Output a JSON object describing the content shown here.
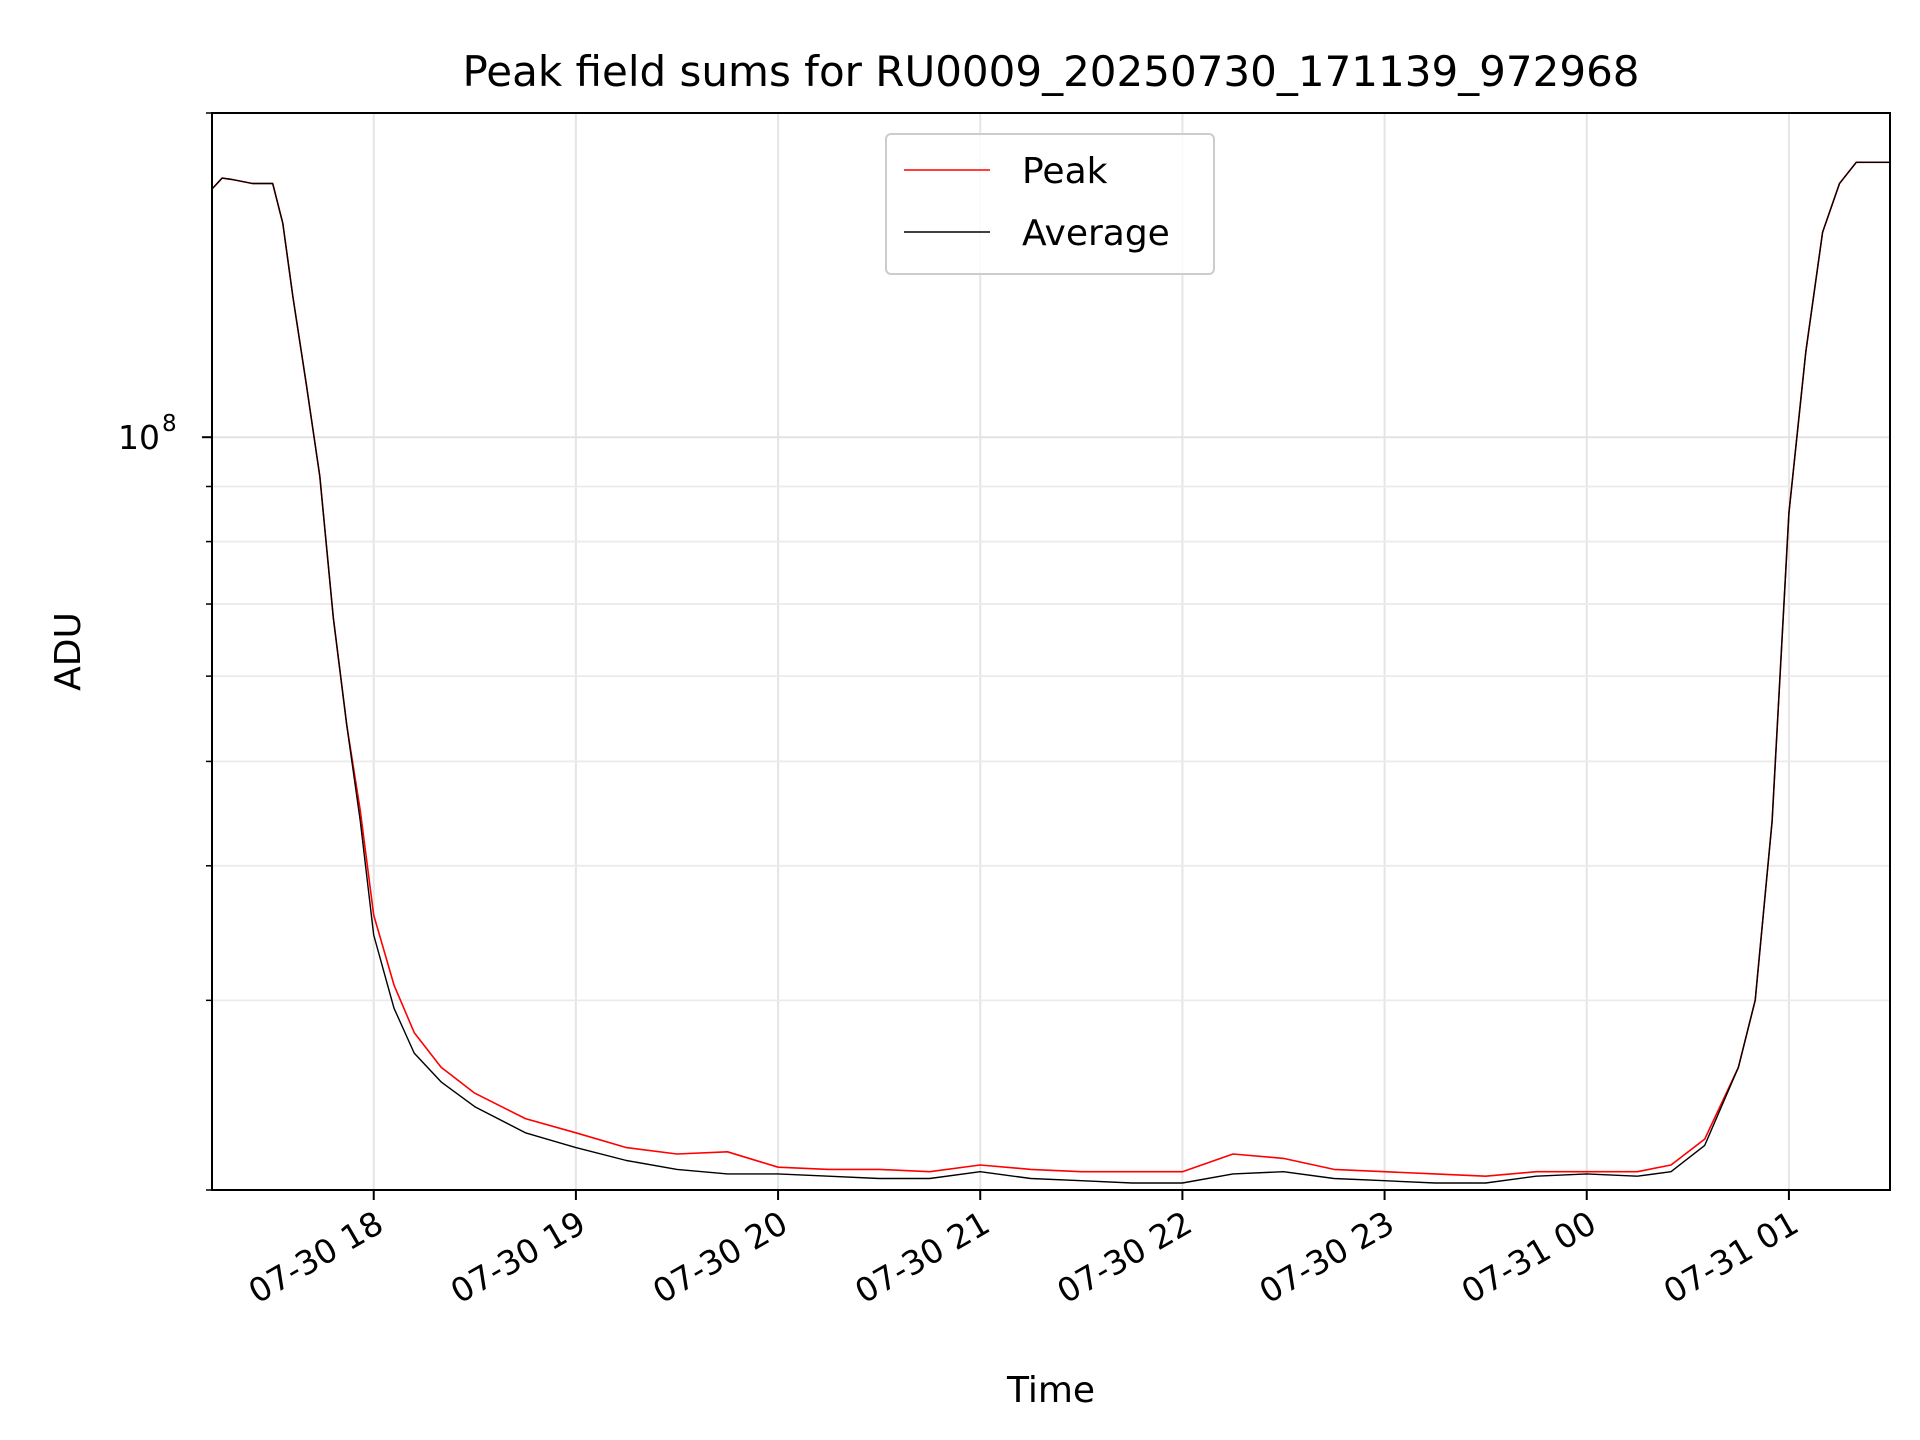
{
  "chart_data": {
    "type": "line",
    "title": "Peak field sums for RU0009_20250730_171139_972968",
    "xlabel": "Time",
    "ylabel": "ADU",
    "x_axis": "datetime",
    "y_scale": "log",
    "xlim": [
      "2025-07-30 17:12",
      "2025-07-31 01:30"
    ],
    "ylim": [
      20000000,
      200000000
    ],
    "x_ticks": [
      {
        "value": "2025-07-30 18:00",
        "label": "07-30 18"
      },
      {
        "value": "2025-07-30 19:00",
        "label": "07-30 19"
      },
      {
        "value": "2025-07-30 20:00",
        "label": "07-30 20"
      },
      {
        "value": "2025-07-30 21:00",
        "label": "07-30 21"
      },
      {
        "value": "2025-07-30 22:00",
        "label": "07-30 22"
      },
      {
        "value": "2025-07-30 23:00",
        "label": "07-30 23"
      },
      {
        "value": "2025-07-31 00:00",
        "label": "07-31 00"
      },
      {
        "value": "2025-07-31 01:00",
        "label": "07-31 01"
      }
    ],
    "y_major_ticks": [
      {
        "value": 100000000,
        "base": "10",
        "exp": "8"
      }
    ],
    "y_minor_ticks": [
      20000000,
      30000000,
      40000000,
      50000000,
      60000000,
      70000000,
      80000000,
      90000000,
      200000000
    ],
    "grid": true,
    "legend": {
      "position": "top-center"
    },
    "series": [
      {
        "name": "Peak",
        "color": "#ff0000",
        "points": [
          [
            "2025-07-30 17:12",
            170000000
          ],
          [
            "2025-07-30 17:15",
            174000000
          ],
          [
            "2025-07-30 17:18",
            173500000
          ],
          [
            "2025-07-30 17:24",
            172000000
          ],
          [
            "2025-07-30 17:30",
            172000000
          ],
          [
            "2025-07-30 17:33",
            158000000
          ],
          [
            "2025-07-30 17:36",
            135000000
          ],
          [
            "2025-07-30 17:40",
            112000000
          ],
          [
            "2025-07-30 17:44",
            92000000
          ],
          [
            "2025-07-30 17:48",
            68000000
          ],
          [
            "2025-07-30 17:52",
            54000000
          ],
          [
            "2025-07-30 17:56",
            45000000
          ],
          [
            "2025-07-30 18:00",
            36000000
          ],
          [
            "2025-07-30 18:06",
            31000000
          ],
          [
            "2025-07-30 18:12",
            28000000
          ],
          [
            "2025-07-30 18:20",
            26000000
          ],
          [
            "2025-07-30 18:30",
            24600000
          ],
          [
            "2025-07-30 18:45",
            23300000
          ],
          [
            "2025-07-30 19:00",
            22600000
          ],
          [
            "2025-07-30 19:15",
            21900000
          ],
          [
            "2025-07-30 19:30",
            21600000
          ],
          [
            "2025-07-30 19:45",
            21700000
          ],
          [
            "2025-07-30 20:00",
            21000000
          ],
          [
            "2025-07-30 20:15",
            20900000
          ],
          [
            "2025-07-30 20:30",
            20900000
          ],
          [
            "2025-07-30 20:45",
            20800000
          ],
          [
            "2025-07-30 21:00",
            21100000
          ],
          [
            "2025-07-30 21:15",
            20900000
          ],
          [
            "2025-07-30 21:30",
            20800000
          ],
          [
            "2025-07-30 21:45",
            20800000
          ],
          [
            "2025-07-30 22:00",
            20800000
          ],
          [
            "2025-07-30 22:15",
            21600000
          ],
          [
            "2025-07-30 22:30",
            21400000
          ],
          [
            "2025-07-30 22:45",
            20900000
          ],
          [
            "2025-07-30 23:00",
            20800000
          ],
          [
            "2025-07-30 23:15",
            20700000
          ],
          [
            "2025-07-30 23:30",
            20600000
          ],
          [
            "2025-07-30 23:45",
            20800000
          ],
          [
            "2025-07-31 00:00",
            20800000
          ],
          [
            "2025-07-31 00:15",
            20800000
          ],
          [
            "2025-07-31 00:25",
            21100000
          ],
          [
            "2025-07-31 00:35",
            22300000
          ],
          [
            "2025-07-31 00:45",
            26000000
          ],
          [
            "2025-07-31 00:50",
            30000000
          ],
          [
            "2025-07-31 00:55",
            44000000
          ],
          [
            "2025-07-31 01:00",
            85000000
          ],
          [
            "2025-07-31 01:05",
            120000000
          ],
          [
            "2025-07-31 01:10",
            155000000
          ],
          [
            "2025-07-31 01:15",
            172000000
          ],
          [
            "2025-07-31 01:20",
            180000000
          ],
          [
            "2025-07-31 01:30",
            180000000
          ]
        ]
      },
      {
        "name": "Average",
        "color": "#000000",
        "points": [
          [
            "2025-07-30 17:12",
            170000000
          ],
          [
            "2025-07-30 17:15",
            174000000
          ],
          [
            "2025-07-30 17:18",
            173500000
          ],
          [
            "2025-07-30 17:24",
            172000000
          ],
          [
            "2025-07-30 17:30",
            172000000
          ],
          [
            "2025-07-30 17:33",
            158000000
          ],
          [
            "2025-07-30 17:36",
            135000000
          ],
          [
            "2025-07-30 17:40",
            112000000
          ],
          [
            "2025-07-30 17:44",
            92000000
          ],
          [
            "2025-07-30 17:48",
            68000000
          ],
          [
            "2025-07-30 17:52",
            54000000
          ],
          [
            "2025-07-30 17:56",
            44000000
          ],
          [
            "2025-07-30 18:00",
            34500000
          ],
          [
            "2025-07-30 18:06",
            29500000
          ],
          [
            "2025-07-30 18:12",
            26800000
          ],
          [
            "2025-07-30 18:20",
            25200000
          ],
          [
            "2025-07-30 18:30",
            23900000
          ],
          [
            "2025-07-30 18:45",
            22600000
          ],
          [
            "2025-07-30 19:00",
            21900000
          ],
          [
            "2025-07-30 19:15",
            21300000
          ],
          [
            "2025-07-30 19:30",
            20900000
          ],
          [
            "2025-07-30 19:45",
            20700000
          ],
          [
            "2025-07-30 20:00",
            20700000
          ],
          [
            "2025-07-30 20:15",
            20600000
          ],
          [
            "2025-07-30 20:30",
            20500000
          ],
          [
            "2025-07-30 20:45",
            20500000
          ],
          [
            "2025-07-30 21:00",
            20800000
          ],
          [
            "2025-07-30 21:15",
            20500000
          ],
          [
            "2025-07-30 21:30",
            20400000
          ],
          [
            "2025-07-30 21:45",
            20300000
          ],
          [
            "2025-07-30 22:00",
            20300000
          ],
          [
            "2025-07-30 22:15",
            20700000
          ],
          [
            "2025-07-30 22:30",
            20800000
          ],
          [
            "2025-07-30 22:45",
            20500000
          ],
          [
            "2025-07-30 23:00",
            20400000
          ],
          [
            "2025-07-30 23:15",
            20300000
          ],
          [
            "2025-07-30 23:30",
            20300000
          ],
          [
            "2025-07-30 23:45",
            20600000
          ],
          [
            "2025-07-31 00:00",
            20700000
          ],
          [
            "2025-07-31 00:15",
            20600000
          ],
          [
            "2025-07-31 00:25",
            20800000
          ],
          [
            "2025-07-31 00:35",
            22000000
          ],
          [
            "2025-07-31 00:45",
            26000000
          ],
          [
            "2025-07-31 00:50",
            30000000
          ],
          [
            "2025-07-31 00:55",
            44000000
          ],
          [
            "2025-07-31 01:00",
            85000000
          ],
          [
            "2025-07-31 01:05",
            120000000
          ],
          [
            "2025-07-31 01:10",
            155000000
          ],
          [
            "2025-07-31 01:15",
            172000000
          ],
          [
            "2025-07-31 01:20",
            180000000
          ],
          [
            "2025-07-31 01:30",
            180000000
          ]
        ]
      }
    ]
  }
}
